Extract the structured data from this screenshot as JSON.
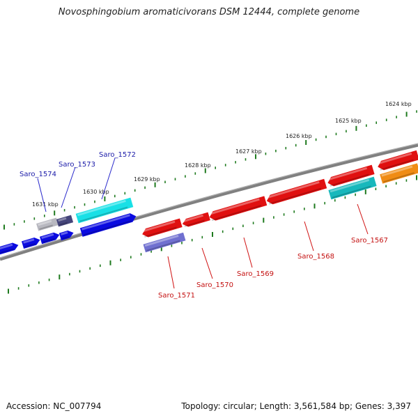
{
  "title": "Novosphingobium aromaticivorans DSM 12444, complete genome",
  "accession_text": "Accession: NC_007794",
  "summary_text": "Topology: circular; Length: 3,561,584 bp; Genes: 3,397",
  "kbp_labels": [
    "1624 kbp",
    "1625 kbp",
    "1626 kbp",
    "1627 kbp",
    "1628 kbp",
    "1629 kbp",
    "1630 kbp",
    "1631 kbp"
  ],
  "gene_labels": {
    "top": [
      "Saro_1574",
      "Saro_1573",
      "Saro_1572"
    ],
    "bottom": [
      "Saro_1571",
      "Saro_1570",
      "Saro_1569",
      "Saro_1568",
      "Saro_1567"
    ]
  },
  "colors": {
    "backbone": "#8a8a8a",
    "tick": "#1e7a1e",
    "blue": "#0a0ae0",
    "cyan": "#19e0e6",
    "red": "#e01010",
    "lavender": "#7070d0",
    "dark_teal": "#17b8bc",
    "orange": "#f08c14",
    "grey": "#b8b8c0",
    "dark_slate": "#45457a",
    "label_blue": "#1a1aa8",
    "label_red": "#c41010"
  }
}
